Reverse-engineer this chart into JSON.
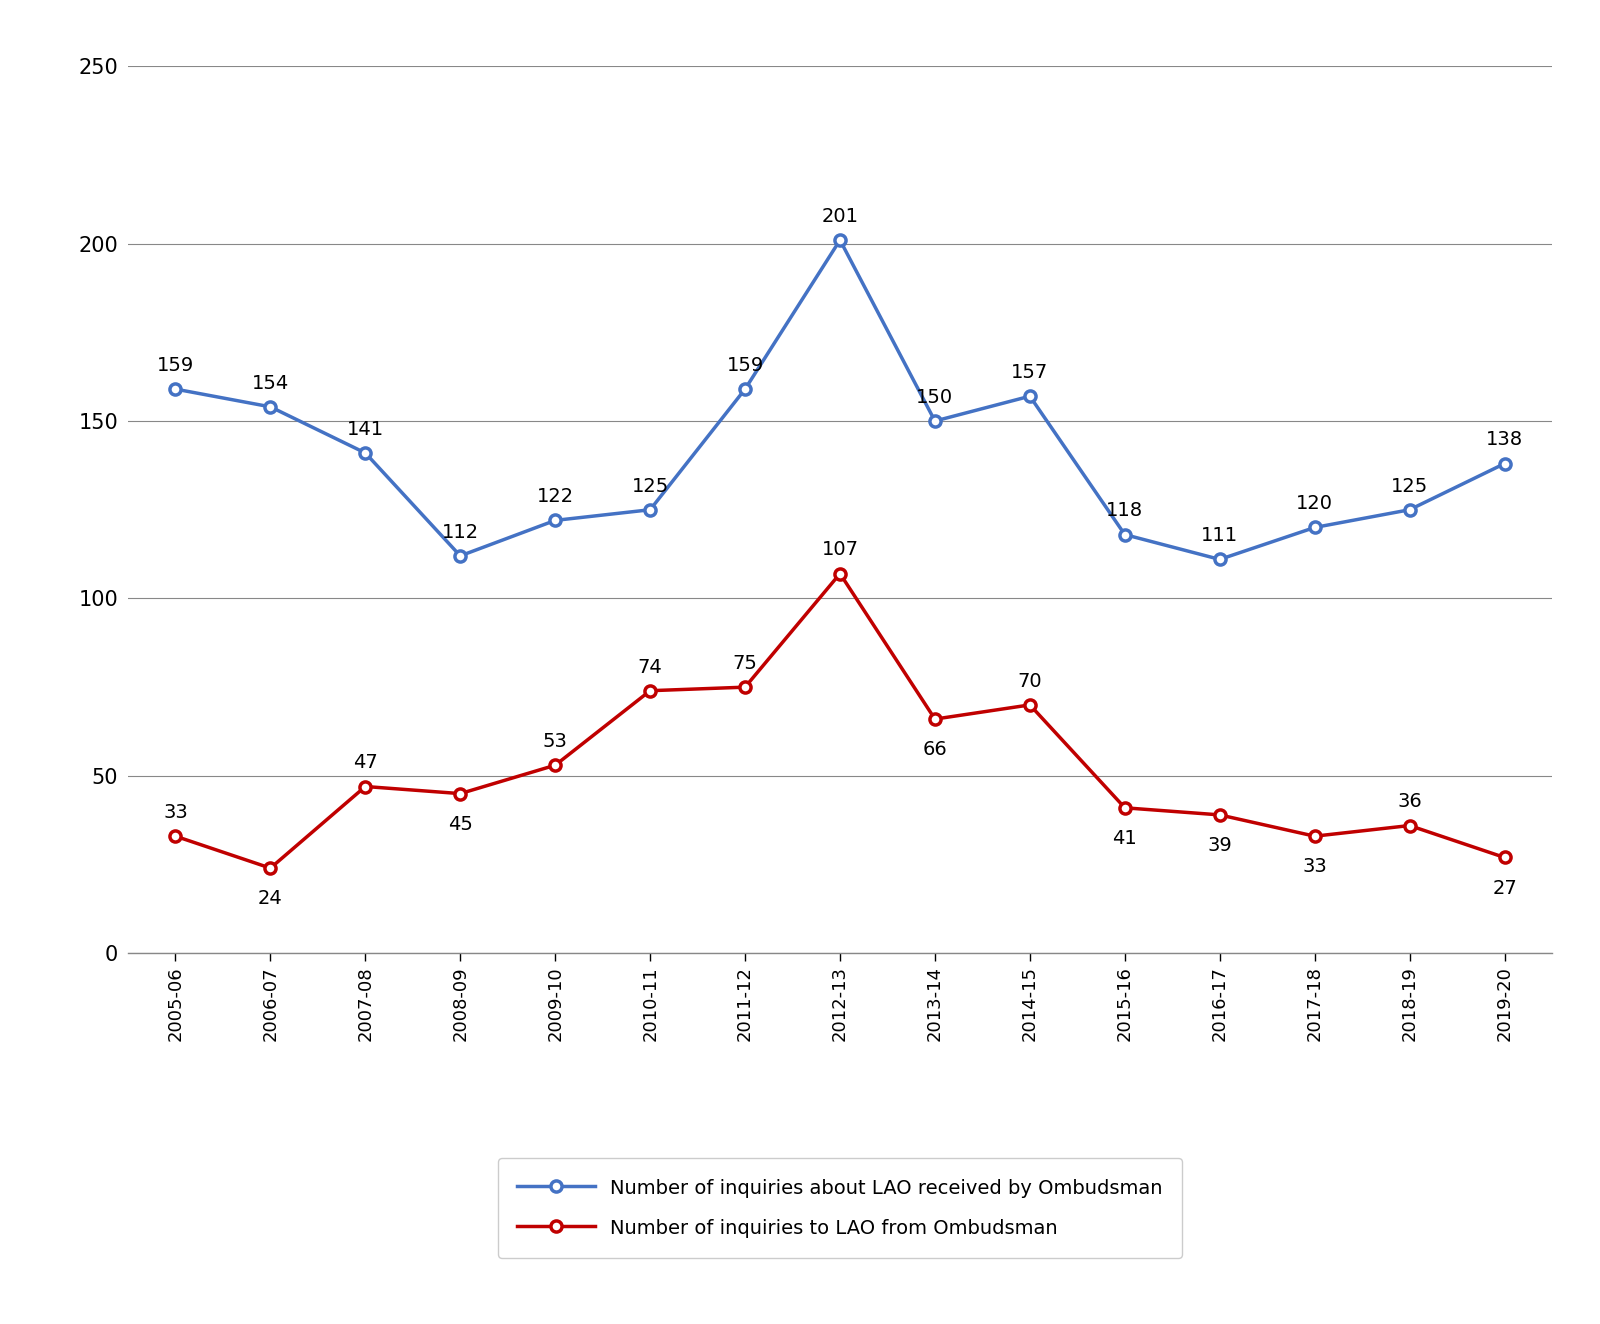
{
  "years": [
    "2005-06",
    "2006-07",
    "2007-08",
    "2008-09",
    "2009-10",
    "2010-11",
    "2011-12",
    "2012-13",
    "2013-14",
    "2014-15",
    "2015-16",
    "2016-17",
    "2017-18",
    "2018-19",
    "2019-20"
  ],
  "received": [
    159,
    154,
    141,
    112,
    122,
    125,
    159,
    201,
    150,
    157,
    118,
    111,
    120,
    125,
    138
  ],
  "made": [
    33,
    24,
    47,
    45,
    53,
    74,
    75,
    107,
    66,
    70,
    41,
    39,
    33,
    36,
    27
  ],
  "blue_color": "#4472C4",
  "red_color": "#C00000",
  "grid_color": "#888888",
  "ylim": [
    0,
    250
  ],
  "yticks": [
    0,
    50,
    100,
    150,
    200,
    250
  ],
  "legend_label_blue": "Number of inquiries about LAO received by Ombudsman",
  "legend_label_red": "Number of inquiries to LAO from Ombudsman",
  "background_color": "#FFFFFF",
  "line_width": 2.5,
  "marker_size": 8,
  "annotation_fontsize": 14,
  "tick_fontsize": 13,
  "legend_fontsize": 14,
  "ytick_fontsize": 15,
  "blue_annot_offsets": [
    8,
    8,
    8,
    8,
    8,
    8,
    8,
    8,
    8,
    8,
    8,
    8,
    8,
    8,
    8
  ],
  "red_annot_offsets": [
    8,
    -12,
    8,
    -12,
    8,
    8,
    8,
    8,
    -12,
    8,
    -12,
    -12,
    -12,
    8,
    -12
  ]
}
